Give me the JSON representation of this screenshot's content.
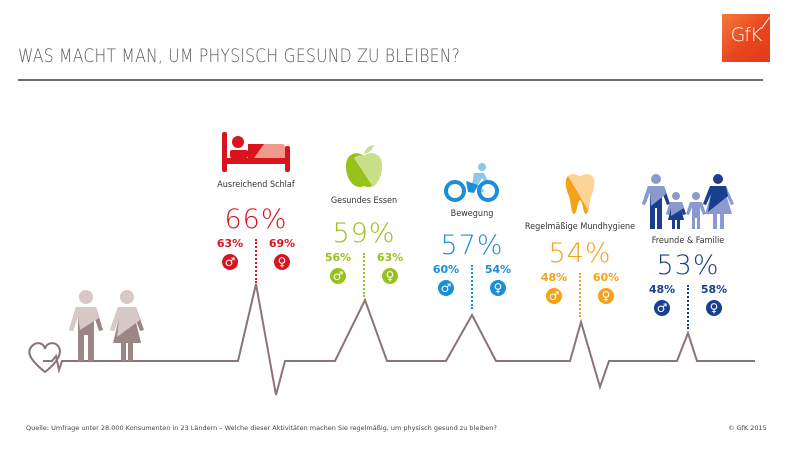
{
  "header": {
    "title": "WAS MACHT MAN, UM PHYSISCH GESUND ZU BLEIBEN?",
    "logo_text": "GfK",
    "brand_color": "#e8461f"
  },
  "line_color": "#8a7474",
  "people_icon_colors": {
    "light": "#d8c8c8",
    "dark": "#9c8585"
  },
  "activities": [
    {
      "label": "Ausreichend Schlaf",
      "icon": "bed-icon",
      "total": "66%",
      "male": "63%",
      "female": "69%",
      "color": "#d9141e",
      "light": "#f09a8e",
      "value": 66,
      "male_value": 63,
      "female_value": 69
    },
    {
      "label": "Gesundes Essen",
      "icon": "apple-icon",
      "total": "59%",
      "male": "56%",
      "female": "63%",
      "color": "#97c21c",
      "light": "#c8e08a",
      "value": 59,
      "male_value": 56,
      "female_value": 63
    },
    {
      "label": "Bewegung",
      "icon": "bicycle-icon",
      "total": "57%",
      "male": "60%",
      "female": "54%",
      "color": "#1b8fd6",
      "light": "#8cc6ec",
      "value": 57,
      "male_value": 60,
      "female_value": 54
    },
    {
      "label": "Regelmäßige Mundhygiene",
      "icon": "tooth-icon",
      "total": "54%",
      "male": "48%",
      "female": "60%",
      "color": "#f5a11a",
      "light": "#fbd597",
      "value": 54,
      "male_value": 48,
      "female_value": 60
    },
    {
      "label": "Freunde & Familie",
      "icon": "family-icon",
      "total": "53%",
      "male": "48%",
      "female": "58%",
      "color": "#1a3f8f",
      "light": "#8a9ad0",
      "value": 53,
      "male_value": 48,
      "female_value": 58
    }
  ],
  "symbols": {
    "male": "♂",
    "female": "♀"
  },
  "footer": {
    "source": "Quelle: Umfrage unter 28.000 Konsumenten in 23 Ländern – Welche dieser Aktivitäten machen Sie regelmäßig, um physisch gesund zu bleiben?",
    "copyright": "© GfK 2015"
  }
}
